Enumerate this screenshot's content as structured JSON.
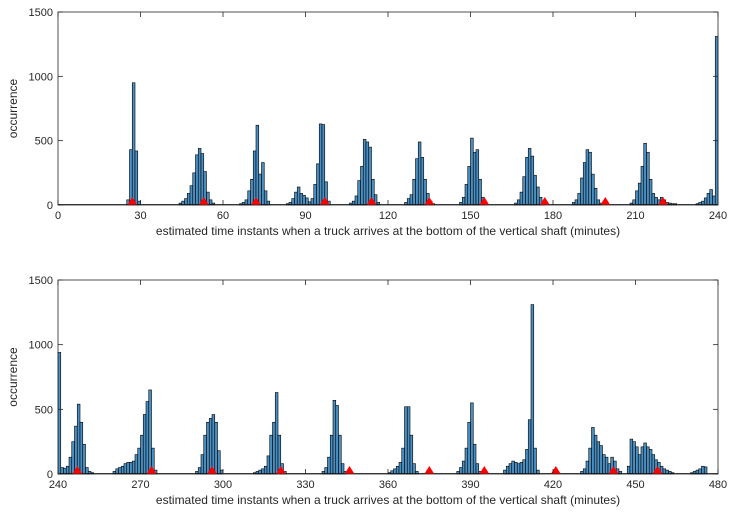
{
  "chart_data": [
    {
      "type": "bar",
      "xlabel": "estimated time instants when a truck arrives at the bottom of the vertical shaft (minutes)",
      "ylabel": "occurrence",
      "xlim": [
        0,
        240
      ],
      "ylim": [
        0,
        1500
      ],
      "xticks": [
        0,
        30,
        60,
        90,
        120,
        150,
        180,
        210,
        240
      ],
      "yticks": [
        0,
        500,
        1000,
        1500
      ],
      "grid": false,
      "bar_color": "#4a8fc2",
      "bin_width_minutes": 1,
      "marker_color": "#ff0000",
      "marker_x": [
        27,
        53,
        72,
        97,
        114,
        135,
        155,
        177,
        199,
        220
      ],
      "bins": [
        [
          25,
          40
        ],
        [
          26,
          430
        ],
        [
          27,
          950
        ],
        [
          28,
          420
        ],
        [
          29,
          30
        ],
        [
          44,
          15
        ],
        [
          45,
          30
        ],
        [
          46,
          50
        ],
        [
          47,
          90
        ],
        [
          48,
          150
        ],
        [
          49,
          250
        ],
        [
          50,
          390
        ],
        [
          51,
          440
        ],
        [
          52,
          400
        ],
        [
          53,
          260
        ],
        [
          54,
          100
        ],
        [
          55,
          40
        ],
        [
          56,
          15
        ],
        [
          66,
          10
        ],
        [
          67,
          20
        ],
        [
          68,
          40
        ],
        [
          69,
          110
        ],
        [
          70,
          200
        ],
        [
          71,
          420
        ],
        [
          72,
          620
        ],
        [
          73,
          240
        ],
        [
          74,
          330
        ],
        [
          75,
          110
        ],
        [
          76,
          30
        ],
        [
          83,
          10
        ],
        [
          84,
          20
        ],
        [
          85,
          50
        ],
        [
          86,
          100
        ],
        [
          87,
          140
        ],
        [
          88,
          90
        ],
        [
          89,
          75
        ],
        [
          90,
          55
        ],
        [
          91,
          25
        ],
        [
          92,
          50
        ],
        [
          93,
          160
        ],
        [
          94,
          320
        ],
        [
          95,
          630
        ],
        [
          96,
          625
        ],
        [
          97,
          180
        ],
        [
          98,
          30
        ],
        [
          106,
          15
        ],
        [
          107,
          30
        ],
        [
          108,
          70
        ],
        [
          109,
          190
        ],
        [
          110,
          300
        ],
        [
          111,
          510
        ],
        [
          112,
          490
        ],
        [
          113,
          450
        ],
        [
          114,
          200
        ],
        [
          115,
          80
        ],
        [
          116,
          20
        ],
        [
          126,
          20
        ],
        [
          127,
          50
        ],
        [
          128,
          80
        ],
        [
          129,
          200
        ],
        [
          130,
          360
        ],
        [
          131,
          490
        ],
        [
          132,
          370
        ],
        [
          133,
          200
        ],
        [
          134,
          90
        ],
        [
          135,
          30
        ],
        [
          136,
          10
        ],
        [
          146,
          20
        ],
        [
          147,
          60
        ],
        [
          148,
          160
        ],
        [
          149,
          300
        ],
        [
          150,
          520
        ],
        [
          151,
          410
        ],
        [
          152,
          430
        ],
        [
          153,
          200
        ],
        [
          154,
          60
        ],
        [
          155,
          20
        ],
        [
          166,
          15
        ],
        [
          167,
          40
        ],
        [
          168,
          100
        ],
        [
          169,
          220
        ],
        [
          170,
          370
        ],
        [
          171,
          440
        ],
        [
          172,
          380
        ],
        [
          173,
          230
        ],
        [
          174,
          140
        ],
        [
          175,
          60
        ],
        [
          176,
          15
        ],
        [
          187,
          20
        ],
        [
          188,
          40
        ],
        [
          189,
          90
        ],
        [
          190,
          210
        ],
        [
          191,
          330
        ],
        [
          192,
          430
        ],
        [
          193,
          410
        ],
        [
          194,
          240
        ],
        [
          195,
          130
        ],
        [
          196,
          40
        ],
        [
          197,
          15
        ],
        [
          208,
          15
        ],
        [
          209,
          40
        ],
        [
          210,
          110
        ],
        [
          211,
          170
        ],
        [
          212,
          300
        ],
        [
          213,
          480
        ],
        [
          214,
          410
        ],
        [
          215,
          200
        ],
        [
          216,
          90
        ],
        [
          217,
          60
        ],
        [
          218,
          40
        ],
        [
          219,
          60
        ],
        [
          220,
          40
        ],
        [
          221,
          20
        ],
        [
          222,
          15
        ],
        [
          223,
          10
        ],
        [
          224,
          10
        ],
        [
          232,
          10
        ],
        [
          233,
          20
        ],
        [
          234,
          30
        ],
        [
          235,
          55
        ],
        [
          236,
          90
        ],
        [
          237,
          120
        ],
        [
          238,
          70
        ],
        [
          239,
          1310
        ]
      ]
    },
    {
      "type": "bar",
      "xlabel": "estimated time instants when a truck arrives at the bottom of the vertical shaft (minutes)",
      "ylabel": "occurrence",
      "xlim": [
        240,
        480
      ],
      "ylim": [
        0,
        1500
      ],
      "xticks": [
        240,
        270,
        300,
        330,
        360,
        390,
        420,
        450,
        480
      ],
      "yticks": [
        0,
        500,
        1000,
        1500
      ],
      "grid": false,
      "bar_color": "#4a8fc2",
      "bin_width_minutes": 1,
      "marker_color": "#ff0000",
      "marker_x": [
        247,
        274,
        296,
        321,
        346,
        375,
        395,
        421,
        442,
        458
      ],
      "bins": [
        [
          240,
          940
        ],
        [
          241,
          50
        ],
        [
          242,
          45
        ],
        [
          243,
          60
        ],
        [
          244,
          130
        ],
        [
          245,
          250
        ],
        [
          246,
          370
        ],
        [
          247,
          540
        ],
        [
          248,
          400
        ],
        [
          249,
          230
        ],
        [
          250,
          50
        ],
        [
          251,
          20
        ],
        [
          252,
          10
        ],
        [
          260,
          20
        ],
        [
          261,
          40
        ],
        [
          262,
          50
        ],
        [
          263,
          60
        ],
        [
          264,
          80
        ],
        [
          265,
          90
        ],
        [
          266,
          90
        ],
        [
          267,
          100
        ],
        [
          268,
          150
        ],
        [
          269,
          200
        ],
        [
          270,
          300
        ],
        [
          271,
          460
        ],
        [
          272,
          560
        ],
        [
          273,
          650
        ],
        [
          274,
          200
        ],
        [
          275,
          30
        ],
        [
          290,
          20
        ],
        [
          291,
          50
        ],
        [
          292,
          150
        ],
        [
          293,
          300
        ],
        [
          294,
          400
        ],
        [
          295,
          430
        ],
        [
          296,
          460
        ],
        [
          297,
          400
        ],
        [
          298,
          180
        ],
        [
          299,
          30
        ],
        [
          311,
          10
        ],
        [
          312,
          20
        ],
        [
          313,
          30
        ],
        [
          314,
          40
        ],
        [
          315,
          60
        ],
        [
          316,
          140
        ],
        [
          317,
          300
        ],
        [
          318,
          400
        ],
        [
          319,
          630
        ],
        [
          320,
          300
        ],
        [
          321,
          80
        ],
        [
          322,
          20
        ],
        [
          336,
          20
        ],
        [
          337,
          50
        ],
        [
          338,
          130
        ],
        [
          339,
          300
        ],
        [
          340,
          570
        ],
        [
          341,
          530
        ],
        [
          342,
          300
        ],
        [
          343,
          80
        ],
        [
          344,
          20
        ],
        [
          360,
          10
        ],
        [
          361,
          25
        ],
        [
          362,
          40
        ],
        [
          363,
          60
        ],
        [
          364,
          90
        ],
        [
          365,
          200
        ],
        [
          366,
          520
        ],
        [
          367,
          520
        ],
        [
          368,
          300
        ],
        [
          369,
          80
        ],
        [
          370,
          20
        ],
        [
          385,
          20
        ],
        [
          386,
          50
        ],
        [
          387,
          100
        ],
        [
          388,
          200
        ],
        [
          389,
          400
        ],
        [
          390,
          550
        ],
        [
          391,
          230
        ],
        [
          392,
          80
        ],
        [
          393,
          20
        ],
        [
          402,
          30
        ],
        [
          403,
          60
        ],
        [
          404,
          80
        ],
        [
          405,
          100
        ],
        [
          406,
          90
        ],
        [
          407,
          80
        ],
        [
          408,
          90
        ],
        [
          409,
          110
        ],
        [
          410,
          190
        ],
        [
          411,
          420
        ],
        [
          412,
          1310
        ],
        [
          413,
          200
        ],
        [
          414,
          30
        ],
        [
          430,
          20
        ],
        [
          431,
          40
        ],
        [
          432,
          100
        ],
        [
          433,
          200
        ],
        [
          434,
          360
        ],
        [
          435,
          300
        ],
        [
          436,
          250
        ],
        [
          437,
          220
        ],
        [
          438,
          150
        ],
        [
          439,
          130
        ],
        [
          440,
          80
        ],
        [
          441,
          130
        ],
        [
          442,
          100
        ],
        [
          443,
          40
        ],
        [
          444,
          20
        ],
        [
          447,
          60
        ],
        [
          448,
          270
        ],
        [
          449,
          250
        ],
        [
          450,
          210
        ],
        [
          451,
          150
        ],
        [
          452,
          210
        ],
        [
          453,
          240
        ],
        [
          454,
          210
        ],
        [
          455,
          190
        ],
        [
          456,
          150
        ],
        [
          457,
          110
        ],
        [
          458,
          90
        ],
        [
          459,
          60
        ],
        [
          460,
          40
        ],
        [
          461,
          30
        ],
        [
          462,
          20
        ],
        [
          463,
          10
        ],
        [
          470,
          10
        ],
        [
          471,
          20
        ],
        [
          472,
          30
        ],
        [
          473,
          40
        ],
        [
          474,
          60
        ],
        [
          475,
          55
        ]
      ]
    }
  ]
}
